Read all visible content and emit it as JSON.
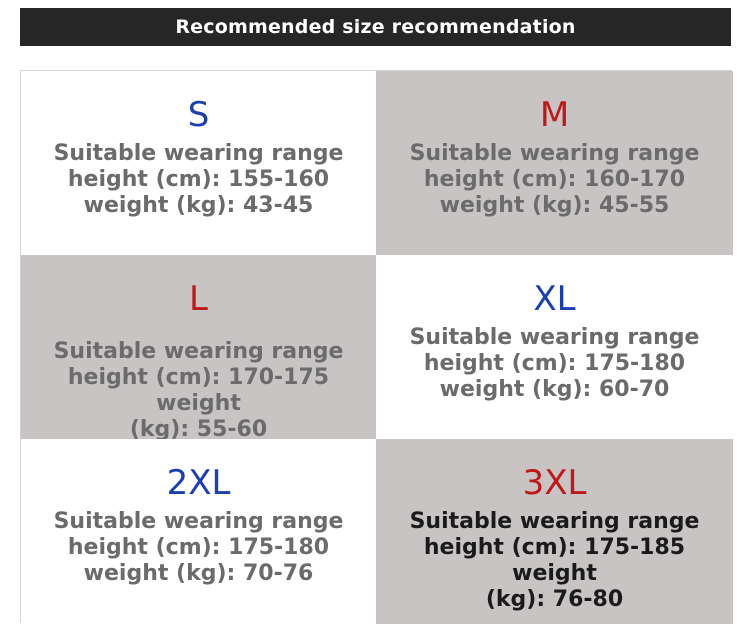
{
  "title": "Recommended size recommendation",
  "sizes": [
    {
      "label": "S",
      "color": "#1a3fb0",
      "lines": [
        "Suitable wearing range",
        "height (cm): 155-160",
        "weight (kg): 43-45"
      ]
    },
    {
      "label": "M",
      "color": "#c01818",
      "lines": [
        "Suitable wearing range",
        "height (cm): 160-170",
        "weight (kg): 45-55"
      ]
    },
    {
      "label": "L",
      "color": "#c01818",
      "lines": [
        "Suitable wearing range",
        "height (cm): 170-175 weight",
        "(kg): 55-60"
      ]
    },
    {
      "label": "XL",
      "color": "#1a3fb0",
      "lines": [
        "Suitable wearing range",
        "height (cm): 175-180",
        "weight (kg): 60-70"
      ]
    },
    {
      "label": "2XL",
      "color": "#1a3fb0",
      "lines": [
        "Suitable wearing range",
        "height (cm): 175-180",
        "weight (kg): 70-76"
      ]
    },
    {
      "label": "3XL",
      "color": "#c01818",
      "lines": [
        "Suitable wearing range",
        "height (cm): 175-185 weight",
        "(kg): 76-80"
      ]
    }
  ]
}
